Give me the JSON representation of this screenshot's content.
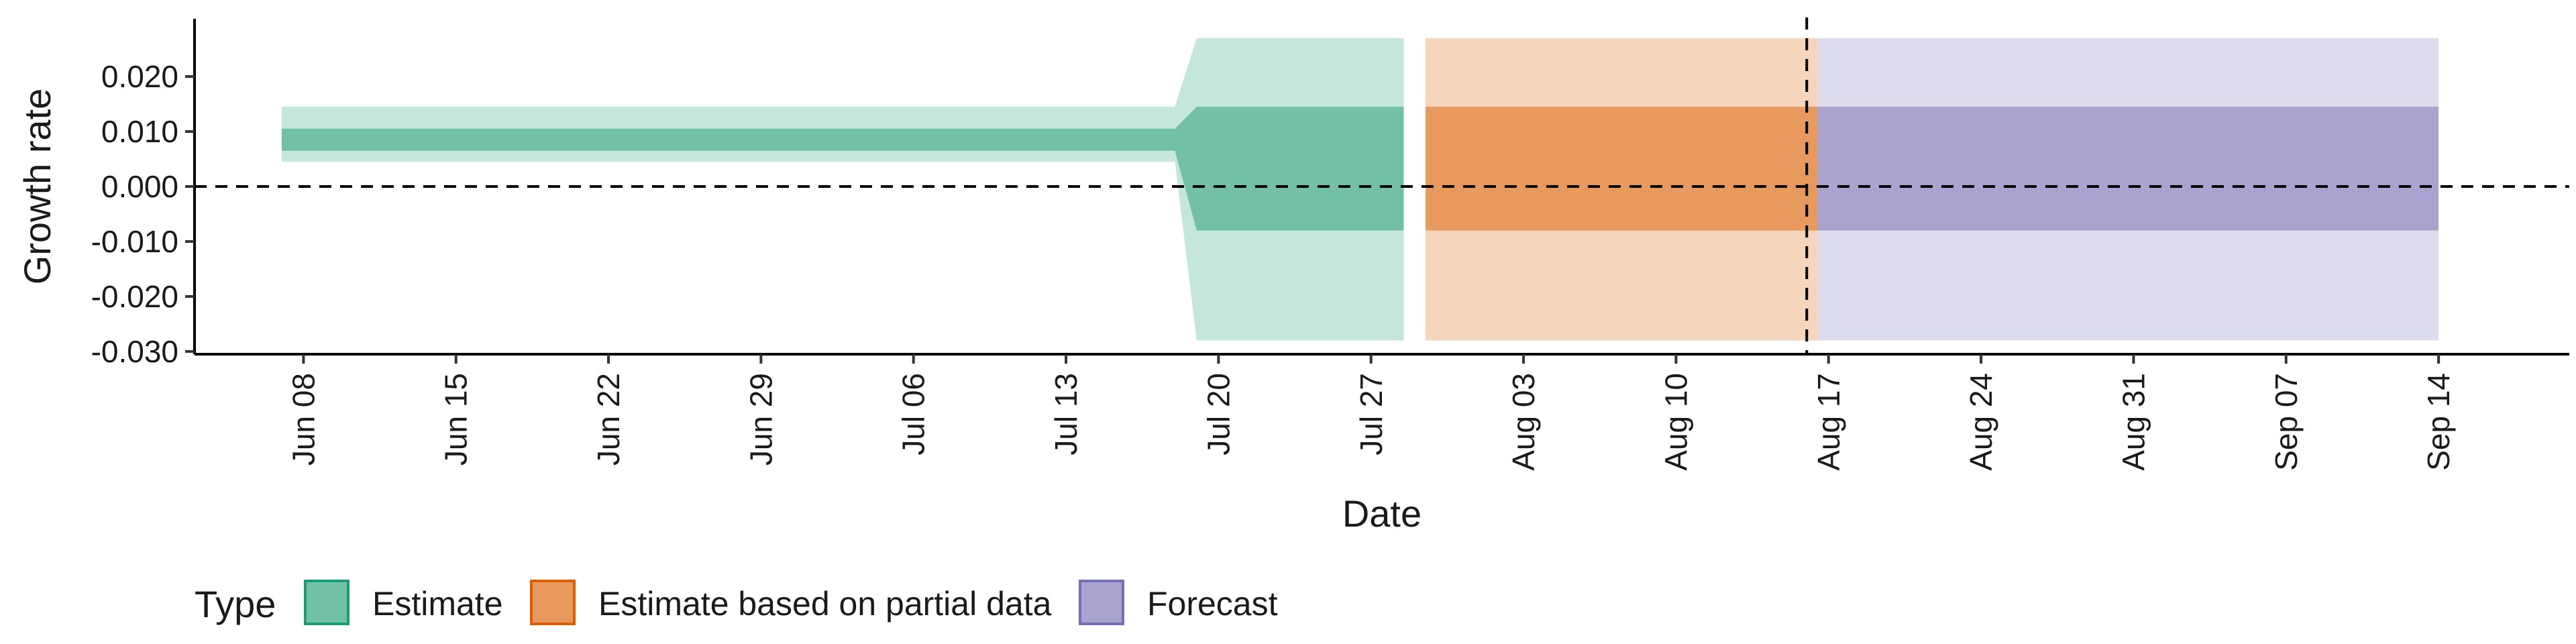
{
  "chart_data": {
    "type": "area",
    "xlabel": "Date",
    "ylabel": "Growth rate",
    "ylim": [
      -0.0305,
      0.0305
    ],
    "yticks": [
      0.02,
      0.01,
      0.0,
      -0.01,
      -0.02,
      -0.03
    ],
    "ytick_labels": [
      "0.020",
      "0.010",
      "0.000",
      "-0.010",
      "-0.020",
      "-0.030"
    ],
    "xlim": [
      "2020-06-03",
      "2020-09-20"
    ],
    "xticks": [
      "2020-06-08",
      "2020-06-15",
      "2020-06-22",
      "2020-06-29",
      "2020-07-06",
      "2020-07-13",
      "2020-07-20",
      "2020-07-27",
      "2020-08-03",
      "2020-08-10",
      "2020-08-17",
      "2020-08-24",
      "2020-08-31",
      "2020-09-07",
      "2020-09-14"
    ],
    "xtick_labels": [
      "Jun 08",
      "Jun 15",
      "Jun 22",
      "Jun 29",
      "Jul 06",
      "Jul 13",
      "Jul 20",
      "Jul 27",
      "Aug 03",
      "Aug 10",
      "Aug 17",
      "Aug 24",
      "Aug 31",
      "Sep 07",
      "Sep 14"
    ],
    "hline": 0.0,
    "vline": "2020-08-16",
    "grid": false,
    "legend": {
      "title": "Type",
      "position": "bottom-left",
      "entries": [
        {
          "label": "Estimate",
          "fill": "#72C1A6",
          "border": "#1B9E77"
        },
        {
          "label": "Estimate based on partial data",
          "fill": "#E8995D",
          "border": "#D95F02"
        },
        {
          "label": "Forecast",
          "fill": "#A8A4CF",
          "border": "#7570B3"
        }
      ]
    },
    "series": [
      {
        "name": "Estimate",
        "color": "#1B9E77",
        "inner_color": "#72C1A6",
        "outer_color": "#C5E6DB",
        "points": [
          {
            "date": "2020-06-07",
            "outer": [
              0.0045,
              0.0145
            ],
            "inner": [
              0.0065,
              0.0105
            ]
          },
          {
            "date": "2020-07-18",
            "outer": [
              0.0045,
              0.0145
            ],
            "inner": [
              0.0065,
              0.0105
            ]
          },
          {
            "date": "2020-07-19",
            "outer": [
              -0.028,
              0.027
            ],
            "inner": [
              -0.008,
              0.0145
            ]
          },
          {
            "date": "2020-07-29",
            "outer": [
              -0.028,
              0.027
            ],
            "inner": [
              -0.008,
              0.0145
            ]
          }
        ]
      },
      {
        "name": "Estimate based on partial data",
        "color": "#D95F02",
        "inner_color": "#E8995D",
        "outer_color": "#F5D6BD",
        "points": [
          {
            "date": "2020-07-30",
            "outer": [
              -0.028,
              0.027
            ],
            "inner": [
              -0.008,
              0.0145
            ]
          },
          {
            "date": "2020-08-16",
            "outer": [
              -0.028,
              0.027
            ],
            "inner": [
              -0.008,
              0.0145
            ]
          }
        ]
      },
      {
        "name": "Forecast",
        "color": "#7570B3",
        "inner_color": "#A8A4CF",
        "outer_color": "#DDDCED",
        "points": [
          {
            "date": "2020-08-17",
            "outer": [
              -0.028,
              0.027
            ],
            "inner": [
              -0.008,
              0.0145
            ]
          },
          {
            "date": "2020-09-14",
            "outer": [
              -0.028,
              0.027
            ],
            "inner": [
              -0.008,
              0.0145
            ]
          }
        ]
      }
    ]
  }
}
